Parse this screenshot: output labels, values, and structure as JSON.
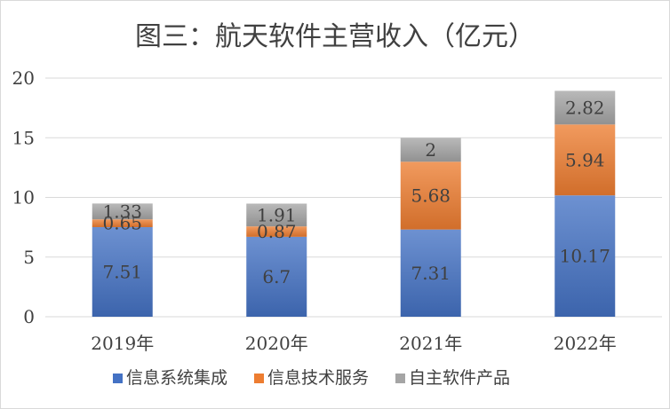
{
  "chart_data": {
    "type": "bar",
    "stacked": true,
    "title": "图三：航天软件主营收入（亿元）",
    "categories": [
      "2019年",
      "2020年",
      "2021年",
      "2022年"
    ],
    "series": [
      {
        "name": "信息系统集成",
        "values": [
          7.51,
          6.7,
          7.31,
          10.17
        ],
        "labels": [
          "7.51",
          "6.7",
          "7.31",
          "10.17"
        ],
        "color": "#4472c4"
      },
      {
        "name": "信息技术服务",
        "values": [
          0.65,
          0.87,
          5.68,
          5.94
        ],
        "labels": [
          "0.65",
          "0.87",
          "5.68",
          "5.94"
        ],
        "color": "#ed7d31"
      },
      {
        "name": "自主软件产品",
        "values": [
          1.33,
          1.91,
          2,
          2.82
        ],
        "labels": [
          "1.33",
          "1.91",
          "2",
          "2.82"
        ],
        "color": "#a5a5a5"
      }
    ],
    "y_ticks": [
      "0",
      "5",
      "10",
      "15",
      "20"
    ],
    "ylim": [
      0,
      20
    ],
    "grid": true,
    "legend_position": "bottom"
  }
}
